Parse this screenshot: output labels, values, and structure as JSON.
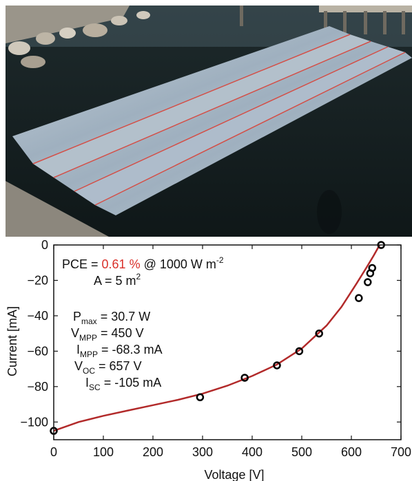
{
  "photo": {
    "description_icon": "floating-solar-modules-photo"
  },
  "chart_data": {
    "type": "scatter",
    "title": "",
    "xlabel": "Voltage [V]",
    "ylabel": "Current [mA]",
    "xlim": [
      0,
      700
    ],
    "ylim": [
      -110,
      0
    ],
    "x_ticks": [
      0,
      100,
      200,
      300,
      400,
      500,
      600,
      700
    ],
    "y_ticks": [
      0,
      -20,
      -40,
      -60,
      -80,
      -100
    ],
    "grid": false,
    "series": [
      {
        "kind": "points",
        "x": [
          0,
          295,
          385,
          450,
          495,
          535,
          615,
          633,
          638,
          642,
          660
        ],
        "y": [
          -105,
          -86,
          -75,
          -68,
          -60,
          -50,
          -30,
          -21,
          -16,
          -13,
          0
        ]
      },
      {
        "kind": "fit-line",
        "x": [
          0,
          50,
          100,
          150,
          200,
          250,
          300,
          350,
          400,
          450,
          500,
          550,
          580,
          610,
          630,
          645,
          657
        ],
        "y": [
          -105,
          -100,
          -96.5,
          -93.5,
          -90.5,
          -87.5,
          -84,
          -79.5,
          -74,
          -67.5,
          -58.5,
          -45.5,
          -35,
          -22,
          -13,
          -6,
          0
        ]
      }
    ],
    "colors": {
      "points": "#000000",
      "line": "#b22a2a",
      "highlight": "#d9302a"
    },
    "annotations": {
      "pce_prefix": "PCE = ",
      "pce_value": "0.61 %",
      "pce_suffix": " @ 1000 W m",
      "pce_exp": "-2",
      "area_prefix": "A = 5 m",
      "area_exp": "2",
      "pmax_label": "P",
      "pmax_sub": "max",
      "pmax_value": " = 30.7 W",
      "vmpp_label": "V",
      "vmpp_sub": "MPP",
      "vmpp_value": " = 450 V",
      "impp_label": "I",
      "impp_sub": "MPP",
      "impp_value": " = -68.3 mA",
      "voc_label": "V",
      "voc_sub": "OC",
      "voc_value": " = 657 V",
      "isc_label": "I",
      "isc_sub": "SC",
      "isc_value": " = -105 mA"
    }
  }
}
